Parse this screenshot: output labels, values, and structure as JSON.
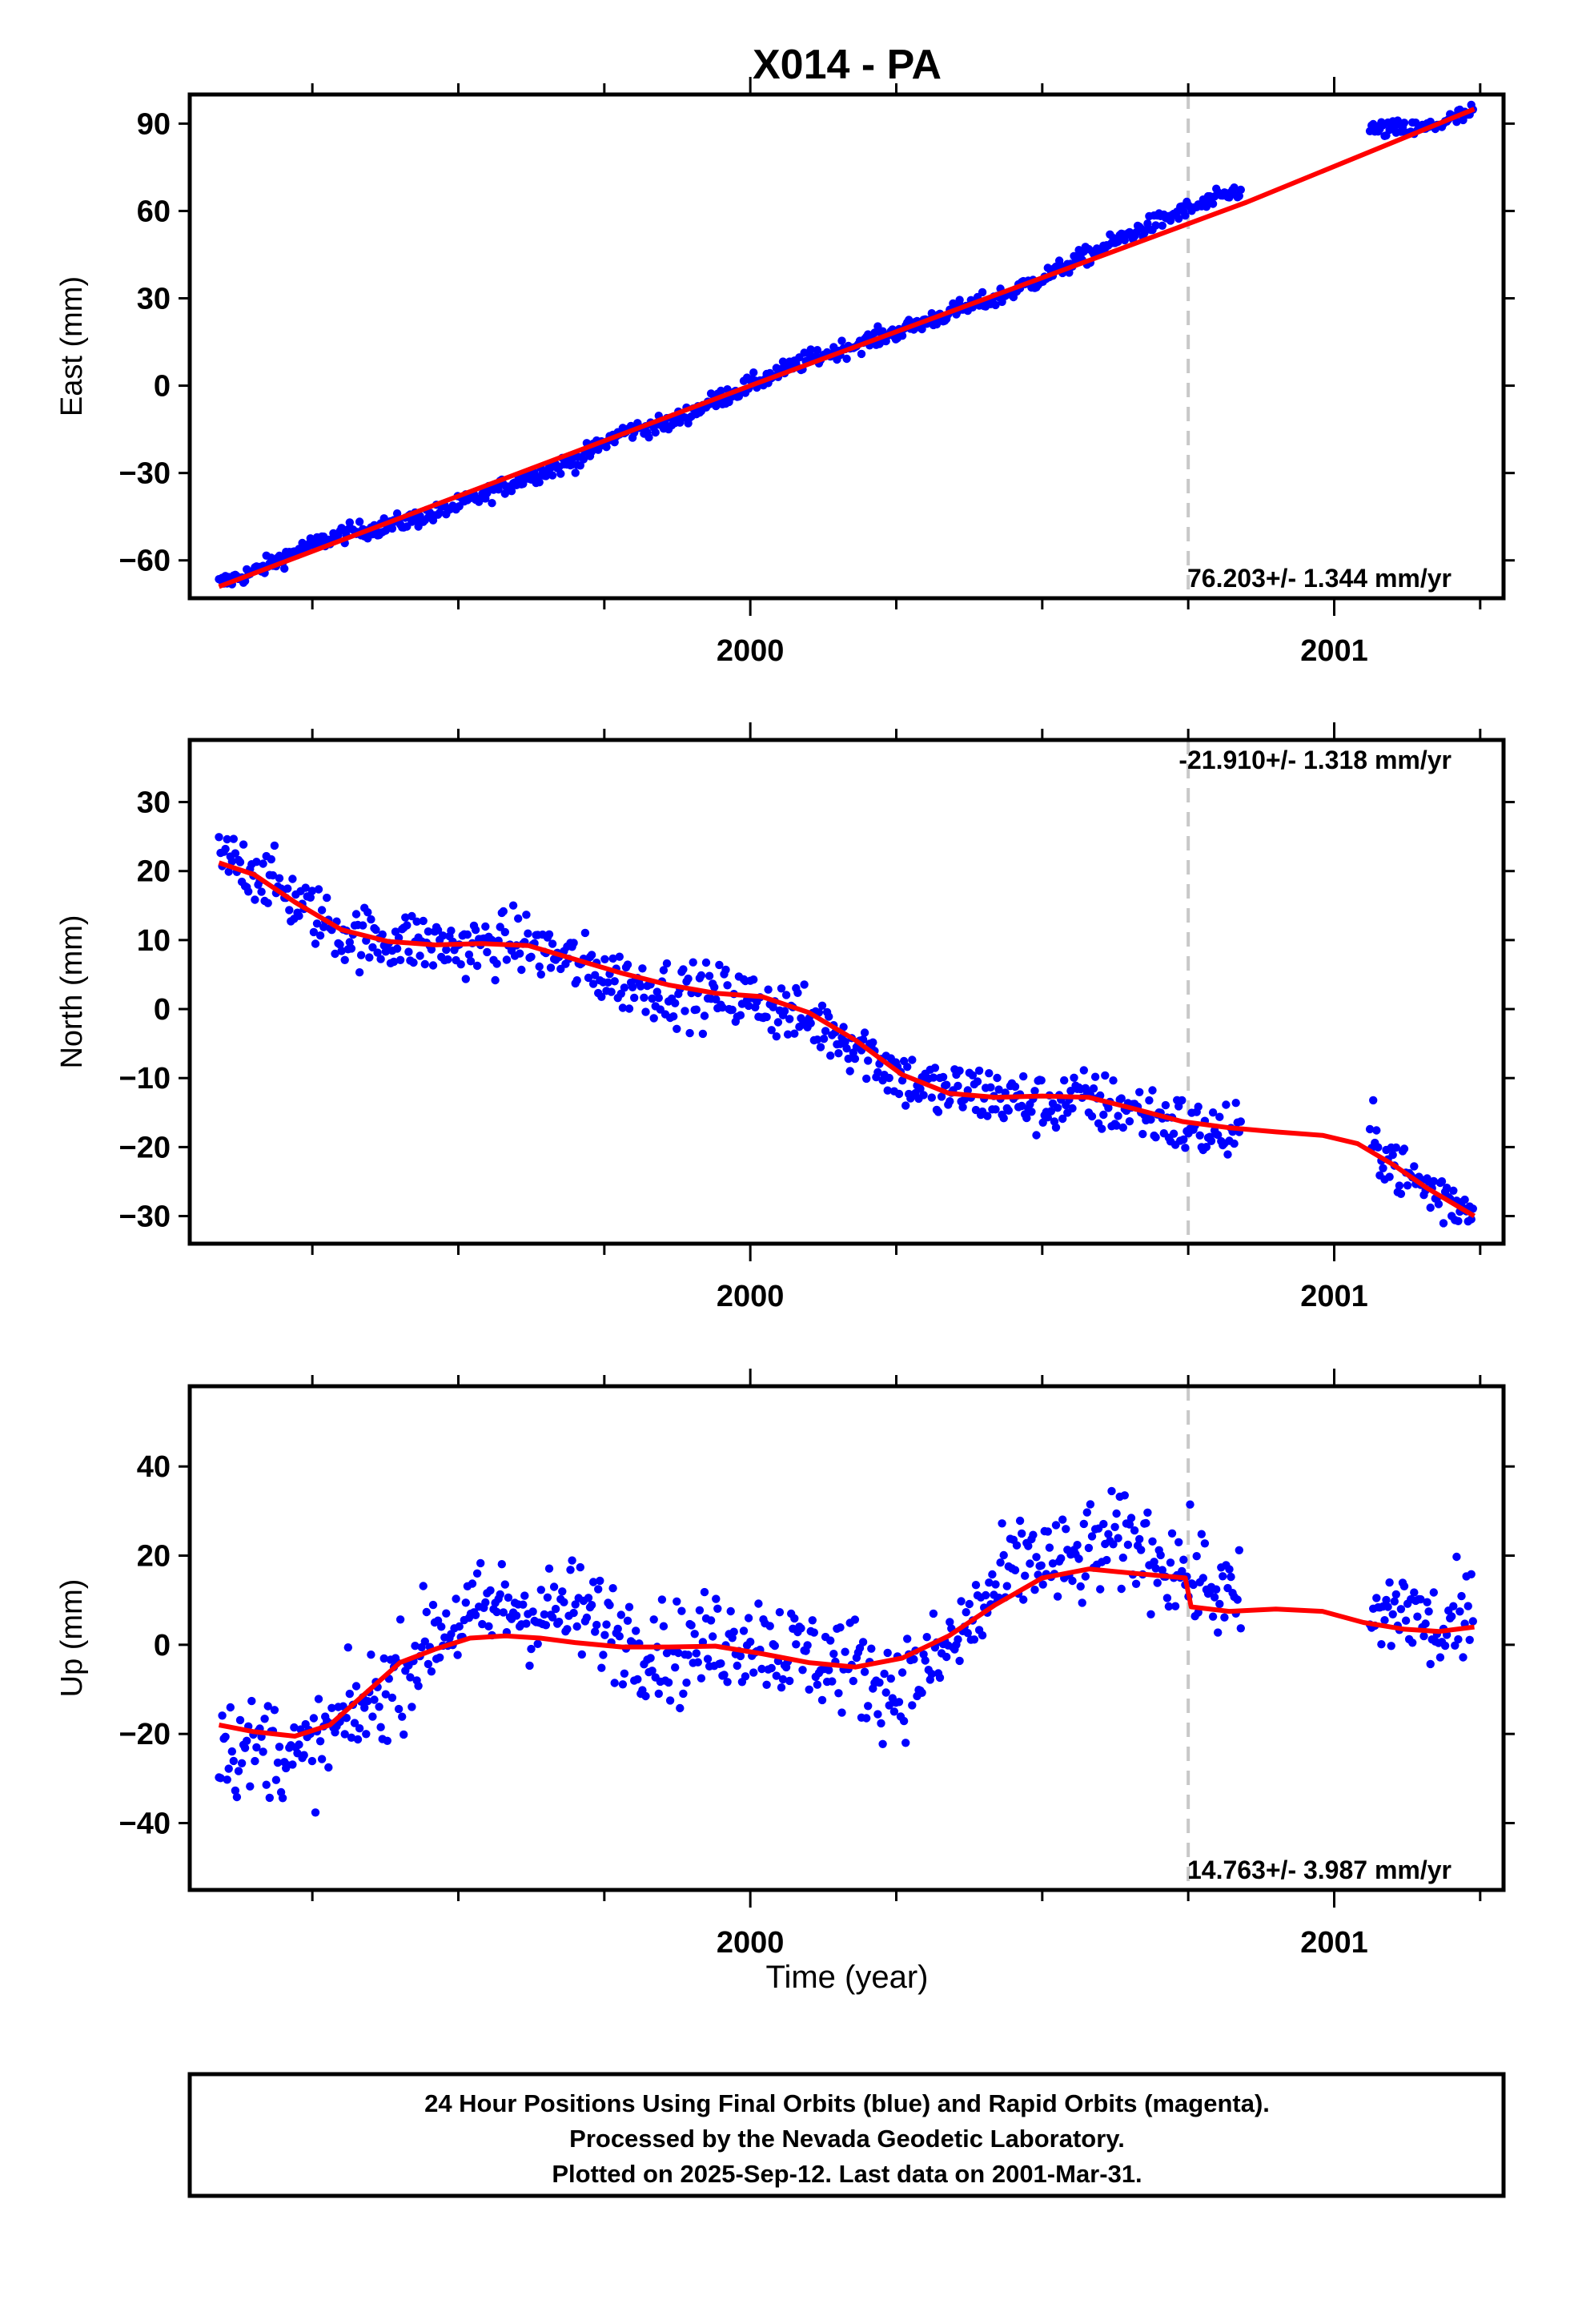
{
  "title": "X014 - PA",
  "xlabel": "Time (year)",
  "footer": {
    "line1": "24 Hour Positions Using Final Orbits (blue) and Rapid Orbits (magenta).",
    "line2": "Processed by the Nevada Geodetic Laboratory.",
    "line3": "Plotted on 2025-Sep-12. Last data on 2001-Mar-31."
  },
  "colors": {
    "data": "#0000ff",
    "model": "#ff0000",
    "marker": "#c8c8c8"
  },
  "chart_data": [
    {
      "type": "scatter",
      "component": "east",
      "ylabel": "East (mm)",
      "rate_text": "76.203+/- 1.344 mm/yr",
      "xlim": [
        1999.04,
        2001.29
      ],
      "ylim": [
        -73,
        100
      ],
      "yticks": [
        -60,
        -30,
        0,
        30,
        60,
        90
      ],
      "xticks": [
        2000,
        2001
      ],
      "xtick_labels": [
        "2000",
        "2001"
      ],
      "vertical_marker_x": 2000.75,
      "series": [
        {
          "name": "data",
          "x": [
            1999.09,
            1999.15,
            1999.22,
            1999.3,
            1999.38,
            1999.46,
            1999.54,
            1999.62,
            1999.7,
            1999.78,
            1999.86,
            1999.94,
            2000.02,
            2000.1,
            2000.18,
            2000.26,
            2000.34,
            2000.42,
            2000.5,
            2000.58,
            2000.66,
            2000.73,
            2000.8,
            2001.07,
            2001.15,
            2001.24
          ],
          "y": [
            -68,
            -64,
            -57,
            -51,
            -48,
            -44,
            -38,
            -31,
            -26,
            -16,
            -13,
            -5,
            2,
            9,
            14,
            19,
            25,
            30,
            37,
            45,
            53,
            59,
            64,
            88,
            88,
            94
          ]
        },
        {
          "name": "model",
          "x": [
            1999.09,
            2000.0,
            2000.85,
            2001.24
          ],
          "y": [
            -69,
            0,
            63,
            95
          ]
        }
      ]
    },
    {
      "type": "scatter",
      "component": "north",
      "ylabel": "North (mm)",
      "rate_text": "-21.910+/- 1.318 mm/yr",
      "xlim": [
        1999.04,
        2001.29
      ],
      "ylim": [
        -34,
        39
      ],
      "yticks": [
        -30,
        -20,
        -10,
        0,
        10,
        20,
        30
      ],
      "xticks": [
        2000,
        2001
      ],
      "xtick_labels": [
        "2000",
        "2001"
      ],
      "vertical_marker_x": 2000.75,
      "series": [
        {
          "name": "data",
          "x": [
            1999.09,
            1999.12,
            1999.16,
            1999.2,
            1999.25,
            1999.3,
            1999.36,
            1999.42,
            1999.48,
            1999.54,
            1999.6,
            1999.66,
            1999.72,
            1999.78,
            1999.84,
            1999.9,
            1999.96,
            2000.02,
            2000.08,
            2000.14,
            2000.2,
            2000.26,
            2000.32,
            2000.38,
            2000.44,
            2000.5,
            2000.56,
            2000.62,
            2000.68,
            2000.74,
            2000.8,
            2001.07,
            2001.12,
            2001.18,
            2001.24
          ],
          "y": [
            22,
            21,
            20,
            17,
            14,
            11,
            10,
            10,
            9,
            9,
            10,
            8,
            6,
            4,
            3,
            2,
            2,
            1,
            -1,
            -3,
            -6,
            -10,
            -12,
            -12,
            -13,
            -14,
            -13,
            -14,
            -15,
            -17,
            -18,
            -19,
            -24,
            -27,
            -29
          ]
        },
        {
          "name": "model",
          "x": [
            1999.09,
            1999.15,
            1999.22,
            1999.3,
            1999.38,
            1999.46,
            1999.54,
            1999.62,
            1999.7,
            1999.78,
            1999.86,
            1999.94,
            2000.02,
            2000.1,
            2000.18,
            2000.26,
            2000.34,
            2000.42,
            2000.5,
            2000.58,
            2000.66,
            2000.74,
            2000.82,
            2000.9,
            2000.98,
            2001.04,
            2001.1,
            2001.16,
            2001.24
          ],
          "y": [
            21.2,
            19.5,
            15.5,
            11.5,
            9.8,
            9.3,
            9.5,
            9.2,
            7.2,
            5.2,
            3.5,
            2.3,
            1.8,
            -0.5,
            -4.5,
            -9.5,
            -12.2,
            -12.8,
            -12.6,
            -12.8,
            -14.5,
            -16.3,
            -17.2,
            -17.8,
            -18.3,
            -19.5,
            -22.5,
            -26,
            -30
          ]
        }
      ]
    },
    {
      "type": "scatter",
      "component": "up",
      "ylabel": "Up (mm)",
      "rate_text": "14.763+/- 3.987 mm/yr",
      "xlim": [
        1999.04,
        2001.29
      ],
      "ylim": [
        -55,
        58
      ],
      "yticks": [
        -40,
        -20,
        0,
        20,
        40
      ],
      "xticks": [
        2000,
        2001
      ],
      "xtick_labels": [
        "2000",
        "2001"
      ],
      "vertical_marker_x": 2000.75,
      "series": [
        {
          "name": "data",
          "x": [
            1999.09,
            1999.13,
            1999.18,
            1999.23,
            1999.28,
            1999.34,
            1999.4,
            1999.46,
            1999.52,
            1999.58,
            1999.64,
            1999.7,
            1999.76,
            1999.82,
            1999.88,
            1999.94,
            2000.0,
            2000.06,
            2000.12,
            2000.18,
            2000.24,
            2000.3,
            2000.36,
            2000.42,
            2000.48,
            2000.54,
            2000.6,
            2000.66,
            2000.72,
            2000.78,
            2000.83,
            2001.07,
            2001.12,
            2001.18,
            2001.24
          ],
          "y": [
            -20,
            -24,
            -22,
            -26,
            -20,
            -14,
            -7,
            3,
            6,
            9,
            7,
            8,
            4,
            0,
            -2,
            1,
            2,
            -1,
            -3,
            -5,
            -10,
            -6,
            2,
            12,
            20,
            17,
            22,
            23,
            18,
            14,
            9,
            5,
            9,
            2,
            6
          ]
        },
        {
          "name": "model",
          "x": [
            1999.09,
            1999.15,
            1999.22,
            1999.28,
            1999.34,
            1999.4,
            1999.46,
            1999.52,
            1999.58,
            1999.64,
            1999.7,
            1999.78,
            1999.86,
            1999.94,
            2000.02,
            2000.1,
            2000.18,
            2000.26,
            2000.34,
            2000.42,
            2000.5,
            2000.58,
            2000.66,
            2000.745,
            2000.755,
            2000.82,
            2000.9,
            2000.98,
            2001.05,
            2001.12,
            2001.18,
            2001.24
          ],
          "y": [
            -18,
            -19.5,
            -20.5,
            -18,
            -11,
            -4,
            -1,
            1.5,
            2,
            1.5,
            0.5,
            -0.5,
            -0.5,
            -0.3,
            -2,
            -4,
            -5,
            -3,
            2,
            9,
            15,
            17,
            16,
            15,
            8.5,
            7.5,
            8,
            7.5,
            5,
            3.5,
            3,
            4
          ]
        }
      ]
    }
  ]
}
